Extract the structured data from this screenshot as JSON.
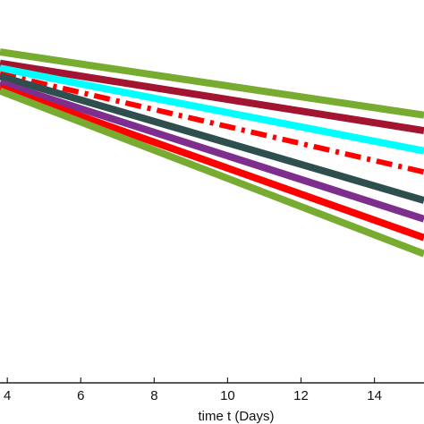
{
  "chart_data": {
    "type": "line",
    "title": "",
    "xlabel": "time t (Days)",
    "ylabel": "",
    "xlim": [
      3.8,
      15.35
    ],
    "ylim": [
      0,
      1
    ],
    "x_ticks": [
      4,
      6,
      8,
      10,
      12,
      14
    ],
    "x_tick_labels": [
      "4",
      "6",
      "8",
      "10",
      "12",
      "14"
    ],
    "grid": false,
    "legend": "none",
    "x": [
      3.8,
      15.35
    ],
    "series": [
      {
        "color": "#77ac30",
        "style": "solid",
        "values": [
          0.8643,
          0.6992
        ]
      },
      {
        "color": "#a2142f",
        "style": "solid",
        "values": [
          0.8347,
          0.6589
        ]
      },
      {
        "color": "#00ffff",
        "style": "solid",
        "values": [
          0.822,
          0.6059
        ]
      },
      {
        "color": "#ff0000",
        "style": "dashdot",
        "values": [
          0.8072,
          0.5508
        ]
      },
      {
        "color": "#2f4f4f",
        "style": "solid",
        "values": [
          0.8008,
          0.4767
        ]
      },
      {
        "color": "#7e2f8e",
        "style": "solid",
        "values": [
          0.7839,
          0.428
        ]
      },
      {
        "color": "#ff0000",
        "style": "solid",
        "values": [
          0.7712,
          0.3792
        ]
      },
      {
        "color": "#77ac30",
        "style": "solid",
        "values": [
          0.7627,
          0.3369
        ]
      }
    ]
  }
}
